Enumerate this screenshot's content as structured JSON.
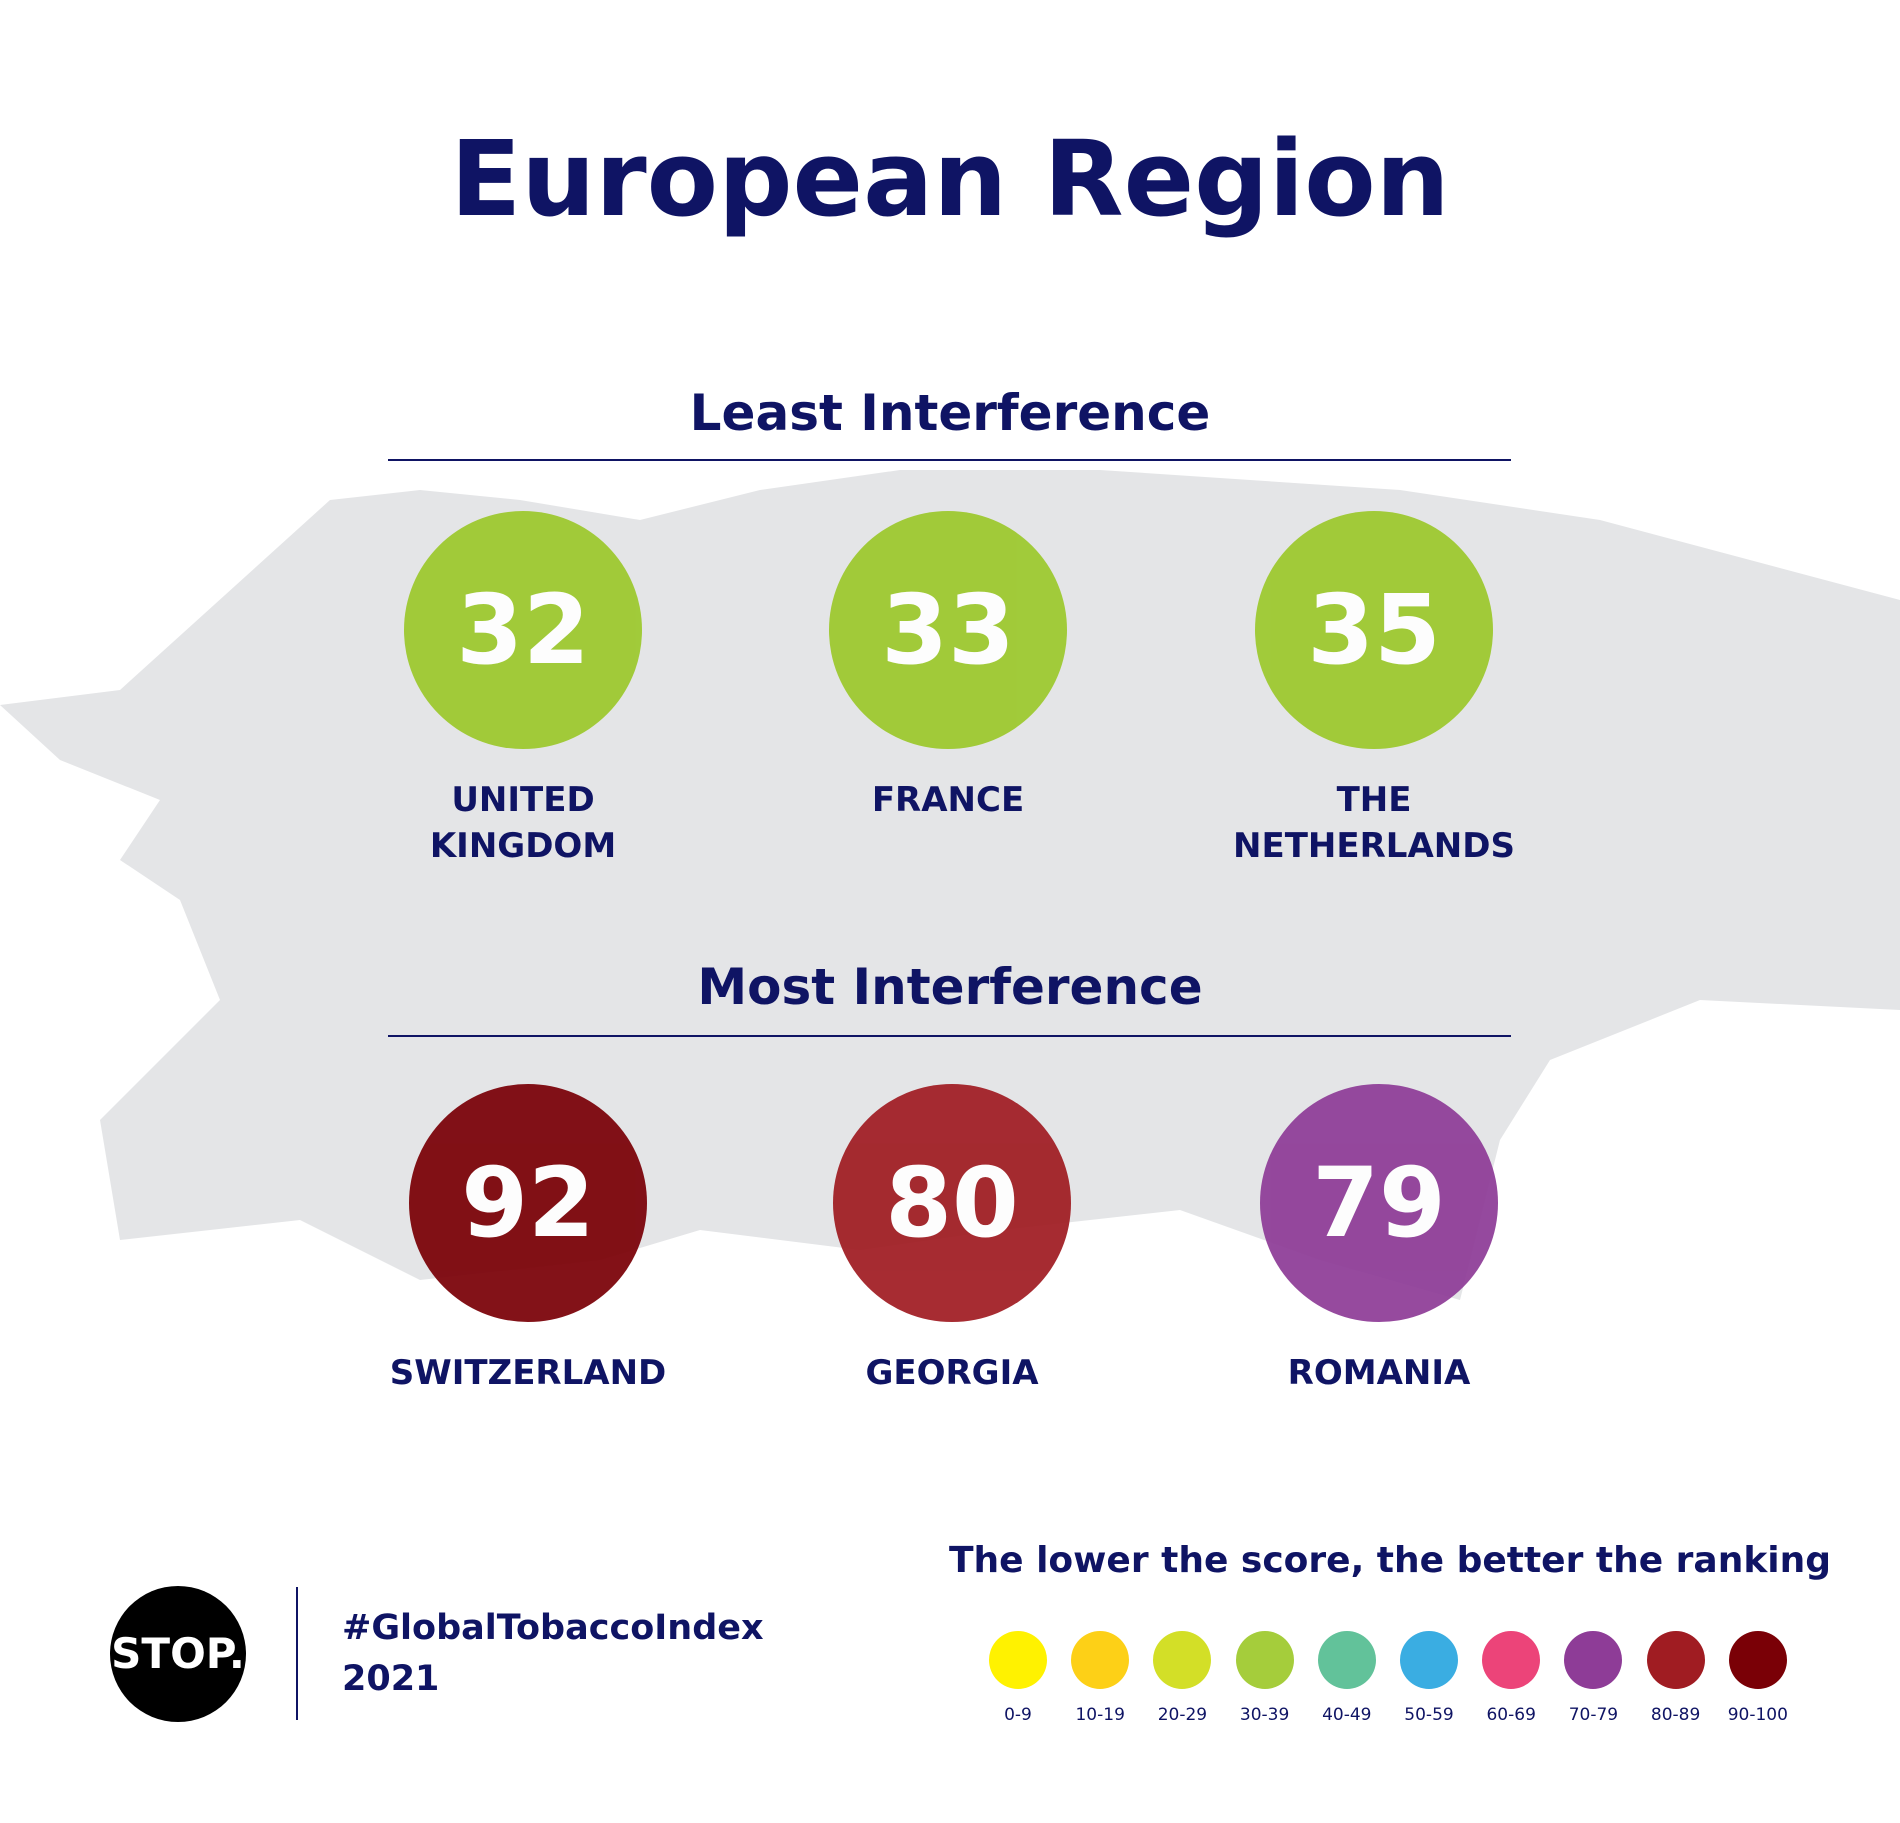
{
  "title": "European Region",
  "sections": [
    {
      "heading": "Least Interference",
      "items": [
        {
          "score": 32,
          "country": "UNITED KINGDOM",
          "color": "#9cc92c"
        },
        {
          "score": 33,
          "country": "FRANCE",
          "color": "#9cc92c"
        },
        {
          "score": 35,
          "country": "THE NETHERLANDS",
          "color": "#9cc92c"
        }
      ]
    },
    {
      "heading": "Most Interference",
      "items": [
        {
          "score": 92,
          "country": "SWITZERLAND",
          "color": "#7a0006"
        },
        {
          "score": 80,
          "country": "GEORGIA",
          "color": "#a01c22"
        },
        {
          "score": 79,
          "country": "ROMANIA",
          "color": "#8e3c97"
        }
      ]
    }
  ],
  "footer": {
    "logo": "STOP.",
    "hashtag": "#GlobalTobaccoIndex",
    "year": "2021"
  },
  "legend": {
    "title": "The lower the score, the better the ranking",
    "ranges": [
      {
        "label": "0-9",
        "color": "#fff200"
      },
      {
        "label": "10-19",
        "color": "#fdd017"
      },
      {
        "label": "20-29",
        "color": "#d3df27"
      },
      {
        "label": "30-39",
        "color": "#a5cd3b"
      },
      {
        "label": "40-49",
        "color": "#62c29a"
      },
      {
        "label": "50-59",
        "color": "#3aade2"
      },
      {
        "label": "60-69",
        "color": "#ec4479"
      },
      {
        "label": "70-79",
        "color": "#8e3c97"
      },
      {
        "label": "80-89",
        "color": "#a01c22"
      },
      {
        "label": "90-100",
        "color": "#7a0006"
      }
    ]
  }
}
